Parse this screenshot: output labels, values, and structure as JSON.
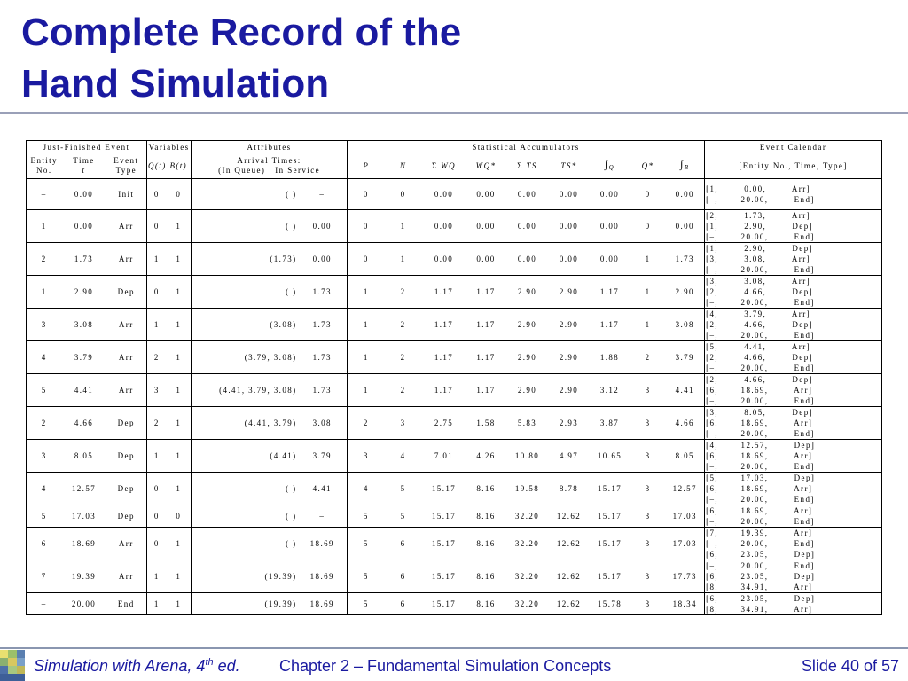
{
  "title_line1": "Complete Record of the",
  "title_line2": "Hand Simulation",
  "header": {
    "group_just_finished": "Just-Finished Event",
    "group_variables": "Variables",
    "group_attributes": "Attributes",
    "group_stats": "Statistical Accumulators",
    "group_calendar": "Event Calendar",
    "entity_no": "Entity No.",
    "time": "Time",
    "time_t": "t",
    "event_type": "Event Type",
    "q_t": "Q(t)",
    "b_t": "B(t)",
    "arrival_times": "Arrival Times:",
    "in_queue": "(In Queue)",
    "in_service": "In Service",
    "P": "P",
    "N": "N",
    "sum_wq": "Σ",
    "wq": "WQ",
    "wq_star": "WQ*",
    "sum_ts": "Σ",
    "ts": "TS",
    "ts_star": "TS*",
    "int_q_sym": "∫",
    "int_q_sub": "Q",
    "q_star": "Q*",
    "int_b_sym": "∫",
    "int_b_sub": "B",
    "cal_header": "[Entity No., Time, Type]"
  },
  "rows": [
    {
      "entity": "–",
      "time": "0.00",
      "type": "Init",
      "q": "0",
      "b": "0",
      "queue": "( )",
      "service": "–",
      "P": "0",
      "N": "0",
      "swq": "0.00",
      "wqs": "0.00",
      "sts": "0.00",
      "tss": "0.00",
      "iq": "0.00",
      "qs": "0",
      "ib": "0.00",
      "cal": [
        "[1,        0.00,        Arr]",
        "[–,       20.00,        End]"
      ],
      "short": false
    },
    {
      "entity": "1",
      "time": "0.00",
      "type": "Arr",
      "q": "0",
      "b": "1",
      "queue": "( )",
      "service": "0.00",
      "P": "0",
      "N": "1",
      "swq": "0.00",
      "wqs": "0.00",
      "sts": "0.00",
      "tss": "0.00",
      "iq": "0.00",
      "qs": "0",
      "ib": "0.00",
      "cal": [
        "[2,        1.73,        Arr]",
        "[1,        2.90,        Dep]",
        "[–,       20.00,        End]"
      ],
      "short": false
    },
    {
      "entity": "2",
      "time": "1.73",
      "type": "Arr",
      "q": "1",
      "b": "1",
      "queue": "(1.73)",
      "service": "0.00",
      "P": "0",
      "N": "1",
      "swq": "0.00",
      "wqs": "0.00",
      "sts": "0.00",
      "tss": "0.00",
      "iq": "0.00",
      "qs": "1",
      "ib": "1.73",
      "cal": [
        "[1,        2.90,        Dep]",
        "[3,        3.08,        Arr]",
        "[–,       20.00,        End]"
      ],
      "short": false
    },
    {
      "entity": "1",
      "time": "2.90",
      "type": "Dep",
      "q": "0",
      "b": "1",
      "queue": "( )",
      "service": "1.73",
      "P": "1",
      "N": "2",
      "swq": "1.17",
      "wqs": "1.17",
      "sts": "2.90",
      "tss": "2.90",
      "iq": "1.17",
      "qs": "1",
      "ib": "2.90",
      "cal": [
        "[3,        3.08,        Arr]",
        "[2,        4.66,        Dep]",
        "[–,       20.00,        End]"
      ],
      "short": false
    },
    {
      "entity": "3",
      "time": "3.08",
      "type": "Arr",
      "q": "1",
      "b": "1",
      "queue": "(3.08)",
      "service": "1.73",
      "P": "1",
      "N": "2",
      "swq": "1.17",
      "wqs": "1.17",
      "sts": "2.90",
      "tss": "2.90",
      "iq": "1.17",
      "qs": "1",
      "ib": "3.08",
      "cal": [
        "[4,        3.79,        Arr]",
        "[2,        4.66,        Dep]",
        "[–,       20.00,        End]"
      ],
      "short": false
    },
    {
      "entity": "4",
      "time": "3.79",
      "type": "Arr",
      "q": "2",
      "b": "1",
      "queue": "(3.79, 3.08)",
      "service": "1.73",
      "P": "1",
      "N": "2",
      "swq": "1.17",
      "wqs": "1.17",
      "sts": "2.90",
      "tss": "2.90",
      "iq": "1.88",
      "qs": "2",
      "ib": "3.79",
      "cal": [
        "[5,        4.41,        Arr]",
        "[2,        4.66,        Dep]",
        "[–,       20.00,        End]"
      ],
      "short": false
    },
    {
      "entity": "5",
      "time": "4.41",
      "type": "Arr",
      "q": "3",
      "b": "1",
      "queue": "(4.41, 3.79, 3.08)",
      "service": "1.73",
      "P": "1",
      "N": "2",
      "swq": "1.17",
      "wqs": "1.17",
      "sts": "2.90",
      "tss": "2.90",
      "iq": "3.12",
      "qs": "3",
      "ib": "4.41",
      "cal": [
        "[2,        4.66,        Dep]",
        "[6,       18.69,        Arr]",
        "[–,       20.00,        End]"
      ],
      "short": false
    },
    {
      "entity": "2",
      "time": "4.66",
      "type": "Dep",
      "q": "2",
      "b": "1",
      "queue": "(4.41, 3.79)",
      "service": "3.08",
      "P": "2",
      "N": "3",
      "swq": "2.75",
      "wqs": "1.58",
      "sts": "5.83",
      "tss": "2.93",
      "iq": "3.87",
      "qs": "3",
      "ib": "4.66",
      "cal": [
        "[3,        8.05,        Dep]",
        "[6,       18.69,        Arr]",
        "[–,       20.00,        End]"
      ],
      "short": false
    },
    {
      "entity": "3",
      "time": "8.05",
      "type": "Dep",
      "q": "1",
      "b": "1",
      "queue": "(4.41)",
      "service": "3.79",
      "P": "3",
      "N": "4",
      "swq": "7.01",
      "wqs": "4.26",
      "sts": "10.80",
      "tss": "4.97",
      "iq": "10.65",
      "qs": "3",
      "ib": "8.05",
      "cal": [
        "[4,       12.57,        Dep]",
        "[6,       18.69,        Arr]",
        "[–,       20.00,        End]"
      ],
      "short": false
    },
    {
      "entity": "4",
      "time": "12.57",
      "type": "Dep",
      "q": "0",
      "b": "1",
      "queue": "( )",
      "service": "4.41",
      "P": "4",
      "N": "5",
      "swq": "15.17",
      "wqs": "8.16",
      "sts": "19.58",
      "tss": "8.78",
      "iq": "15.17",
      "qs": "3",
      "ib": "12.57",
      "cal": [
        "[5,       17.03,        Dep]",
        "[6,       18.69,        Arr]",
        "[–,       20.00,        End]"
      ],
      "short": false
    },
    {
      "entity": "5",
      "time": "17.03",
      "type": "Dep",
      "q": "0",
      "b": "0",
      "queue": "( )",
      "service": "–",
      "P": "5",
      "N": "5",
      "swq": "15.17",
      "wqs": "8.16",
      "sts": "32.20",
      "tss": "12.62",
      "iq": "15.17",
      "qs": "3",
      "ib": "17.03",
      "cal": [
        "[6,       18.69,        Arr]",
        "[–,       20.00,        End]"
      ],
      "short": true
    },
    {
      "entity": "6",
      "time": "18.69",
      "type": "Arr",
      "q": "0",
      "b": "1",
      "queue": "( )",
      "service": "18.69",
      "P": "5",
      "N": "6",
      "swq": "15.17",
      "wqs": "8.16",
      "sts": "32.20",
      "tss": "12.62",
      "iq": "15.17",
      "qs": "3",
      "ib": "17.03",
      "cal": [
        "[7,       19.39,        Arr]",
        "[–,       20.00,        End]",
        "[6,       23.05,        Dep]"
      ],
      "short": false
    },
    {
      "entity": "7",
      "time": "19.39",
      "type": "Arr",
      "q": "1",
      "b": "1",
      "queue": "(19.39)",
      "service": "18.69",
      "P": "5",
      "N": "6",
      "swq": "15.17",
      "wqs": "8.16",
      "sts": "32.20",
      "tss": "12.62",
      "iq": "15.17",
      "qs": "3",
      "ib": "17.73",
      "cal": [
        "[–,       20.00,        End]",
        "[6,       23.05,        Dep]",
        "[8,       34.91,        Arr]"
      ],
      "short": false
    },
    {
      "entity": "–",
      "time": "20.00",
      "type": "End",
      "q": "1",
      "b": "1",
      "queue": "(19.39)",
      "service": "18.69",
      "P": "5",
      "N": "6",
      "swq": "15.17",
      "wqs": "8.16",
      "sts": "32.20",
      "tss": "12.62",
      "iq": "15.78",
      "qs": "3",
      "ib": "18.34",
      "cal": [
        "[6,       23.05,        Dep]",
        "[8,       34.91,        Arr]"
      ],
      "short": true
    }
  ],
  "footer": {
    "book": "Simulation with Arena, 4",
    "book_sup": "th",
    "book_tail": " ed.",
    "chapter": "Chapter 2 – Fundamental Simulation Concepts",
    "slide": "Slide 40 of 57"
  }
}
